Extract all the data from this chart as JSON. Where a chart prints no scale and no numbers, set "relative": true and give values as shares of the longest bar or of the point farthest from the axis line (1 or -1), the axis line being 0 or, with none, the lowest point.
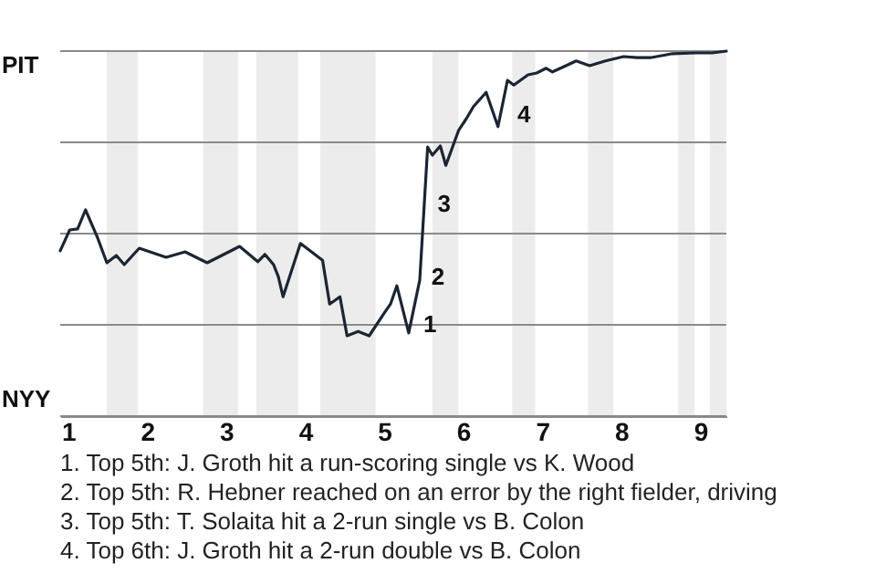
{
  "chart_data": {
    "type": "line",
    "relative": true,
    "x": [
      0.9,
      1.02,
      1.12,
      1.22,
      1.37,
      1.49,
      1.61,
      1.71,
      1.9,
      2.24,
      2.48,
      2.76,
      3.17,
      3.4,
      3.49,
      3.6,
      3.66,
      3.72,
      3.94,
      4.22,
      4.31,
      4.44,
      4.53,
      4.67,
      4.81,
      5.0,
      5.08,
      5.16,
      5.31,
      5.45,
      5.55,
      5.61,
      5.71,
      5.78,
      5.94,
      6.04,
      6.13,
      6.29,
      6.44,
      6.56,
      6.64,
      6.82,
      6.93,
      7.05,
      7.13,
      7.3,
      7.43,
      7.6,
      7.8,
      8.03,
      8.2,
      8.37,
      8.65,
      8.93,
      9.15,
      9.33
    ],
    "series": [
      {
        "color": "#1c2533",
        "values": [
          0.453,
          0.51,
          0.513,
          0.565,
          0.49,
          0.42,
          0.44,
          0.415,
          0.46,
          0.435,
          0.45,
          0.42,
          0.465,
          0.423,
          0.443,
          0.415,
          0.382,
          0.327,
          0.473,
          0.427,
          0.307,
          0.327,
          0.22,
          0.232,
          0.22,
          0.282,
          0.307,
          0.357,
          0.228,
          0.373,
          0.737,
          0.715,
          0.74,
          0.687,
          0.782,
          0.815,
          0.848,
          0.887,
          0.793,
          0.92,
          0.907,
          0.935,
          0.94,
          0.953,
          0.943,
          0.96,
          0.973,
          0.96,
          0.973,
          0.985,
          0.982,
          0.982,
          0.993,
          0.995,
          0.995,
          1
        ]
      }
    ],
    "xlim": [
      0.9,
      9.33
    ],
    "xticks": [
      1,
      2,
      3,
      4,
      5,
      6,
      7,
      8,
      9
    ],
    "ref_lines": [
      {
        "axis": "y",
        "value": 0.25,
        "color": "#8a8a8a"
      },
      {
        "axis": "y",
        "value": 0.5,
        "color": "#8a8a8a"
      },
      {
        "axis": "y",
        "value": 0.75,
        "color": "#8a8a8a"
      },
      {
        "axis": "y",
        "value": 1,
        "color": "#8a8a8a",
        "label": "PIT"
      },
      {
        "axis": "y",
        "value": 0,
        "color": "#8a8a8a",
        "label": "NYY"
      }
    ],
    "bands": [
      {
        "axis": "x",
        "from": 1.49,
        "to": 1.88,
        "color": "#ececec"
      },
      {
        "axis": "x",
        "from": 2.71,
        "to": 3.15,
        "color": "#ececec"
      },
      {
        "axis": "x",
        "from": 3.38,
        "to": 3.91,
        "color": "#ececec"
      },
      {
        "axis": "x",
        "from": 4.19,
        "to": 4.89,
        "color": "#ececec"
      },
      {
        "axis": "x",
        "from": 5.61,
        "to": 5.94,
        "color": "#ececec"
      },
      {
        "axis": "x",
        "from": 6.62,
        "to": 6.91,
        "color": "#ececec"
      },
      {
        "axis": "x",
        "from": 7.58,
        "to": 7.9,
        "color": "#ececec"
      },
      {
        "axis": "x",
        "from": 8.72,
        "to": 8.93,
        "color": "#ececec"
      },
      {
        "axis": "x",
        "from": 9.12,
        "to": 9.33,
        "color": "#ececec"
      }
    ],
    "annotations": [
      {
        "text": "1",
        "x": 5.45,
        "y": 0.25
      },
      {
        "text": "2",
        "x": 5.55,
        "y": 0.38
      },
      {
        "text": "3",
        "x": 5.63,
        "y": 0.58
      },
      {
        "text": "4",
        "x": 6.64,
        "y": 0.825
      },
      "1. Top 5th: J. Groth hit a run-scoring single vs K. Wood",
      "2. Top 5th: R. Hebner reached on an error by the right fielder, driving",
      "3. Top 5th: T. Solaita hit a 2-run single vs B. Colon",
      "4. Top 6th: J. Groth hit a 2-run double vs B. Colon"
    ]
  }
}
